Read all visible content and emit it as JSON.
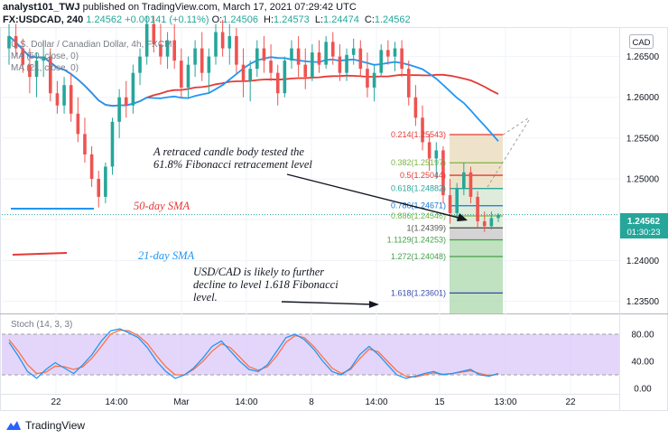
{
  "header": {
    "user": "analyst101_TWJ",
    "published": "published on TradingView.com, March 17, 2021 07:29:42 UTC",
    "symbol": "FX:USDCAD, 240",
    "last": "1.24562",
    "change": "+0.00141 (+0.11%)",
    "ohlc": [
      {
        "k": "O:",
        "v": "1.24506"
      },
      {
        "k": "H:",
        "v": "1.24573"
      },
      {
        "k": "L:",
        "v": "1.24474"
      },
      {
        "k": "C:",
        "v": "1.24562"
      }
    ]
  },
  "legend": {
    "title": "U.S. Dollar / Canadian Dollar, 4h, FXCM",
    "ma1": "MA (50, close, 0)",
    "ma2": "MA (21, close, 0)"
  },
  "currency": "CAD",
  "price_tag": {
    "value": "1.24562",
    "countdown": "01:30:23",
    "color": "#26a69a"
  },
  "annotations": {
    "text1_line1": "A retraced candle body tested the",
    "text1_line2": "61.8% Fibonacci retracement level",
    "sma50": "50-day SMA",
    "sma21": "21-day SMA",
    "text2_line1": "USD/CAD is likely to further",
    "text2_line2": "decline to level 1.618 Fibonacci",
    "text2_line3": "level."
  },
  "stoch": {
    "label": "Stoch (14, 3, 3)",
    "ticks": [
      "80.00",
      "40.00",
      "0.00"
    ]
  },
  "footer": {
    "brand": "TradingView"
  },
  "colors": {
    "up": "#26a69a",
    "down": "#ef5350",
    "ma50": "#e53935",
    "ma21": "#2196f3",
    "stoch_k": "#2196f3",
    "stoch_d": "#ff7043",
    "stoch_band": "#cdb4f5"
  },
  "chart_data": {
    "type": "candlestick",
    "title": "U.S. Dollar / Canadian Dollar, 4h, FXCM",
    "y_ticks": [
      "1.26500",
      "1.26000",
      "1.25500",
      "1.25000",
      "1.24500",
      "1.24000",
      "1.23500"
    ],
    "ylim": [
      1.2335,
      1.2685
    ],
    "x_ticks": [
      "22",
      "14:00",
      "Mar",
      "14:00",
      "8",
      "14:00",
      "15",
      "13:00",
      "22"
    ],
    "candles": [
      {
        "o": 1.266,
        "h": 1.269,
        "l": 1.264,
        "c": 1.2675
      },
      {
        "o": 1.2675,
        "h": 1.269,
        "l": 1.265,
        "c": 1.266
      },
      {
        "o": 1.266,
        "h": 1.2672,
        "l": 1.263,
        "c": 1.264
      },
      {
        "o": 1.264,
        "h": 1.266,
        "l": 1.2605,
        "c": 1.2625
      },
      {
        "o": 1.2625,
        "h": 1.2655,
        "l": 1.26,
        "c": 1.2645
      },
      {
        "o": 1.2645,
        "h": 1.267,
        "l": 1.2625,
        "c": 1.265
      },
      {
        "o": 1.265,
        "h": 1.266,
        "l": 1.2595,
        "c": 1.2605
      },
      {
        "o": 1.2605,
        "h": 1.262,
        "l": 1.258,
        "c": 1.259
      },
      {
        "o": 1.259,
        "h": 1.2625,
        "l": 1.258,
        "c": 1.2615
      },
      {
        "o": 1.2615,
        "h": 1.263,
        "l": 1.257,
        "c": 1.258
      },
      {
        "o": 1.258,
        "h": 1.26,
        "l": 1.2545,
        "c": 1.2555
      },
      {
        "o": 1.2555,
        "h": 1.2575,
        "l": 1.252,
        "c": 1.253
      },
      {
        "o": 1.253,
        "h": 1.254,
        "l": 1.249,
        "c": 1.25
      },
      {
        "o": 1.25,
        "h": 1.251,
        "l": 1.2465,
        "c": 1.2478
      },
      {
        "o": 1.2478,
        "h": 1.252,
        "l": 1.247,
        "c": 1.2515
      },
      {
        "o": 1.2515,
        "h": 1.2575,
        "l": 1.2505,
        "c": 1.257
      },
      {
        "o": 1.257,
        "h": 1.261,
        "l": 1.255,
        "c": 1.26
      },
      {
        "o": 1.26,
        "h": 1.262,
        "l": 1.2575,
        "c": 1.259
      },
      {
        "o": 1.259,
        "h": 1.264,
        "l": 1.258,
        "c": 1.263
      },
      {
        "o": 1.263,
        "h": 1.266,
        "l": 1.2615,
        "c": 1.265
      },
      {
        "o": 1.265,
        "h": 1.27,
        "l": 1.264,
        "c": 1.269
      },
      {
        "o": 1.269,
        "h": 1.27,
        "l": 1.2655,
        "c": 1.2665
      },
      {
        "o": 1.2665,
        "h": 1.269,
        "l": 1.264,
        "c": 1.265
      },
      {
        "o": 1.265,
        "h": 1.268,
        "l": 1.2635,
        "c": 1.267
      },
      {
        "o": 1.267,
        "h": 1.269,
        "l": 1.2635,
        "c": 1.2645
      },
      {
        "o": 1.2645,
        "h": 1.266,
        "l": 1.26,
        "c": 1.2612
      },
      {
        "o": 1.2612,
        "h": 1.265,
        "l": 1.26,
        "c": 1.264
      },
      {
        "o": 1.264,
        "h": 1.267,
        "l": 1.2625,
        "c": 1.266
      },
      {
        "o": 1.266,
        "h": 1.268,
        "l": 1.262,
        "c": 1.263
      },
      {
        "o": 1.263,
        "h": 1.266,
        "l": 1.2605,
        "c": 1.265
      },
      {
        "o": 1.265,
        "h": 1.269,
        "l": 1.264,
        "c": 1.268
      },
      {
        "o": 1.268,
        "h": 1.2695,
        "l": 1.265,
        "c": 1.266
      },
      {
        "o": 1.266,
        "h": 1.269,
        "l": 1.264,
        "c": 1.2675
      },
      {
        "o": 1.2675,
        "h": 1.2685,
        "l": 1.263,
        "c": 1.264
      },
      {
        "o": 1.264,
        "h": 1.266,
        "l": 1.26,
        "c": 1.262
      },
      {
        "o": 1.262,
        "h": 1.2645,
        "l": 1.2595,
        "c": 1.2635
      },
      {
        "o": 1.2635,
        "h": 1.267,
        "l": 1.2625,
        "c": 1.266
      },
      {
        "o": 1.266,
        "h": 1.2675,
        "l": 1.263,
        "c": 1.2645
      },
      {
        "o": 1.2645,
        "h": 1.2665,
        "l": 1.262,
        "c": 1.263
      },
      {
        "o": 1.263,
        "h": 1.264,
        "l": 1.259,
        "c": 1.2605
      },
      {
        "o": 1.2605,
        "h": 1.265,
        "l": 1.26,
        "c": 1.2645
      },
      {
        "o": 1.2645,
        "h": 1.267,
        "l": 1.2635,
        "c": 1.266
      },
      {
        "o": 1.266,
        "h": 1.2675,
        "l": 1.2625,
        "c": 1.264
      },
      {
        "o": 1.264,
        "h": 1.266,
        "l": 1.261,
        "c": 1.2625
      },
      {
        "o": 1.2625,
        "h": 1.2665,
        "l": 1.262,
        "c": 1.2655
      },
      {
        "o": 1.2655,
        "h": 1.267,
        "l": 1.263,
        "c": 1.264
      },
      {
        "o": 1.264,
        "h": 1.2675,
        "l": 1.2635,
        "c": 1.2668
      },
      {
        "o": 1.2668,
        "h": 1.268,
        "l": 1.264,
        "c": 1.265
      },
      {
        "o": 1.265,
        "h": 1.2665,
        "l": 1.262,
        "c": 1.263
      },
      {
        "o": 1.263,
        "h": 1.266,
        "l": 1.262,
        "c": 1.2652
      },
      {
        "o": 1.2652,
        "h": 1.2672,
        "l": 1.264,
        "c": 1.266
      },
      {
        "o": 1.266,
        "h": 1.267,
        "l": 1.2625,
        "c": 1.2635
      },
      {
        "o": 1.2635,
        "h": 1.2655,
        "l": 1.26,
        "c": 1.2612
      },
      {
        "o": 1.2612,
        "h": 1.264,
        "l": 1.2595,
        "c": 1.263
      },
      {
        "o": 1.263,
        "h": 1.2665,
        "l": 1.2625,
        "c": 1.2658
      },
      {
        "o": 1.2658,
        "h": 1.267,
        "l": 1.264,
        "c": 1.265
      },
      {
        "o": 1.265,
        "h": 1.2668,
        "l": 1.2632,
        "c": 1.266
      },
      {
        "o": 1.266,
        "h": 1.267,
        "l": 1.2625,
        "c": 1.2635
      },
      {
        "o": 1.2635,
        "h": 1.2645,
        "l": 1.259,
        "c": 1.26
      },
      {
        "o": 1.26,
        "h": 1.2615,
        "l": 1.2565,
        "c": 1.2575
      },
      {
        "o": 1.2575,
        "h": 1.259,
        "l": 1.2535,
        "c": 1.2545
      },
      {
        "o": 1.2545,
        "h": 1.2555,
        "l": 1.251,
        "c": 1.2525
      },
      {
        "o": 1.2525,
        "h": 1.2545,
        "l": 1.25,
        "c": 1.2535
      },
      {
        "o": 1.2535,
        "h": 1.254,
        "l": 1.247,
        "c": 1.248
      },
      {
        "o": 1.248,
        "h": 1.25,
        "l": 1.2445,
        "c": 1.2458
      },
      {
        "o": 1.2458,
        "h": 1.2495,
        "l": 1.245,
        "c": 1.2488
      },
      {
        "o": 1.2488,
        "h": 1.252,
        "l": 1.248,
        "c": 1.2508
      },
      {
        "o": 1.2508,
        "h": 1.2515,
        "l": 1.247,
        "c": 1.2478
      },
      {
        "o": 1.2478,
        "h": 1.2485,
        "l": 1.244,
        "c": 1.2448
      },
      {
        "o": 1.2448,
        "h": 1.246,
        "l": 1.2435,
        "c": 1.2442
      },
      {
        "o": 1.2442,
        "h": 1.246,
        "l": 1.2438,
        "c": 1.2452
      },
      {
        "o": 1.2452,
        "h": 1.2458,
        "l": 1.2447,
        "c": 1.2456
      }
    ],
    "fibonacci": [
      {
        "label": "0.214(1.25543)",
        "value": 1.25543,
        "color": "#e53935"
      },
      {
        "label": "0.382(1.25197)",
        "value": 1.25197,
        "color": "#7cb342"
      },
      {
        "label": "0.5(1.25044)",
        "value": 1.25044,
        "color": "#e53935"
      },
      {
        "label": "0.618(1.24882)",
        "value": 1.24882,
        "color": "#26a69a"
      },
      {
        "label": "0.786(1.24671)",
        "value": 1.24671,
        "color": "#1976d2"
      },
      {
        "label": "0.886(1.24546)",
        "value": 1.24546,
        "color": "#7cb342"
      },
      {
        "label": "1(1.24399)",
        "value": 1.24399,
        "color": "#555555"
      },
      {
        "label": "1.1129(1.24253)",
        "value": 1.24253,
        "color": "#43a047"
      },
      {
        "label": "1.272(1.24048)",
        "value": 1.24048,
        "color": "#43a047"
      },
      {
        "label": "1.618(1.23601)",
        "value": 1.23601,
        "color": "#3949ab"
      }
    ],
    "stoch_k": [
      68,
      48,
      25,
      15,
      28,
      38,
      30,
      22,
      35,
      50,
      70,
      85,
      88,
      82,
      75,
      60,
      40,
      25,
      15,
      20,
      30,
      45,
      62,
      70,
      55,
      40,
      28,
      25,
      35,
      55,
      75,
      80,
      72,
      58,
      40,
      25,
      20,
      30,
      50,
      62,
      50,
      35,
      20,
      15,
      18,
      22,
      25,
      20,
      22,
      25,
      28,
      20,
      18,
      22
    ],
    "stoch_d": [
      72,
      55,
      35,
      22,
      24,
      33,
      32,
      28,
      32,
      45,
      62,
      80,
      86,
      85,
      78,
      66,
      48,
      32,
      20,
      20,
      28,
      40,
      55,
      66,
      60,
      46,
      32,
      27,
      32,
      48,
      68,
      78,
      75,
      62,
      46,
      30,
      22,
      28,
      44,
      58,
      54,
      40,
      26,
      18,
      17,
      20,
      23,
      21,
      22,
      24,
      26,
      22,
      19,
      21
    ]
  }
}
